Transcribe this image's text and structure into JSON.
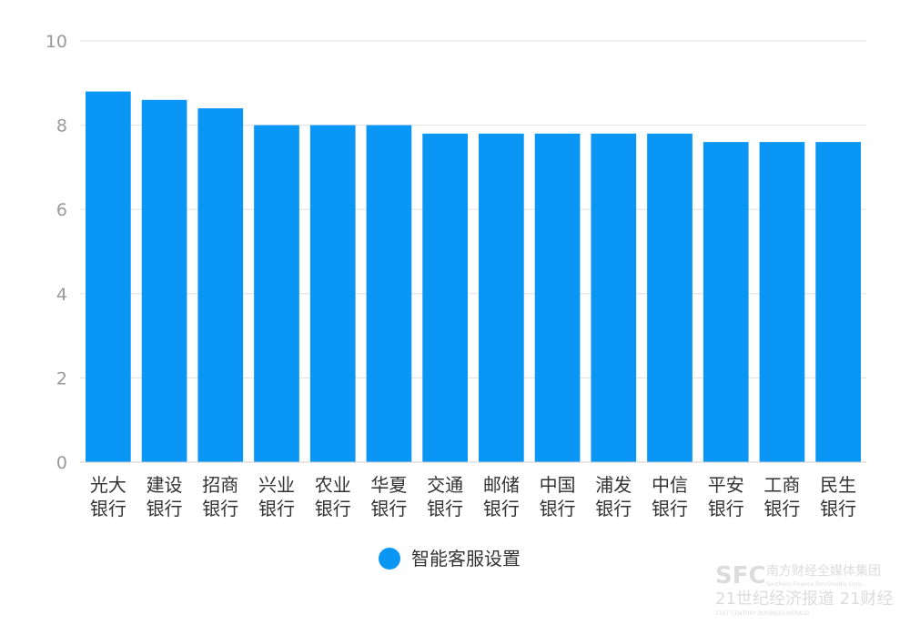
{
  "chart_data": {
    "type": "bar",
    "categories": [
      [
        "光大",
        "银行"
      ],
      [
        "建设",
        "银行"
      ],
      [
        "招商",
        "银行"
      ],
      [
        "兴业",
        "银行"
      ],
      [
        "农业",
        "银行"
      ],
      [
        "华夏",
        "银行"
      ],
      [
        "交通",
        "银行"
      ],
      [
        "邮储",
        "银行"
      ],
      [
        "中国",
        "银行"
      ],
      [
        "浦发",
        "银行"
      ],
      [
        "中信",
        "银行"
      ],
      [
        "平安",
        "银行"
      ],
      [
        "工商",
        "银行"
      ],
      [
        "民生",
        "银行"
      ]
    ],
    "series": [
      {
        "name": "智能客服设置",
        "values": [
          8.8,
          8.6,
          8.4,
          8.0,
          8.0,
          8.0,
          7.8,
          7.8,
          7.8,
          7.8,
          7.8,
          7.6,
          7.6,
          7.6
        ]
      }
    ],
    "ylim": [
      0,
      10
    ],
    "yticks": [
      0,
      2,
      4,
      6,
      8,
      10
    ],
    "grid": true,
    "legend_position": "bottom-center",
    "bar_color": "#0a96f5"
  },
  "watermark": {
    "logo_text": "SFC",
    "group_name": "南方财经全媒体集团",
    "group_name_en": "Southern Finance Omnimedia Corp.",
    "brand_line": "21世纪经济报道 21财经",
    "brand_line_en": "21ST CENTURY BUSINESS HERALD"
  }
}
